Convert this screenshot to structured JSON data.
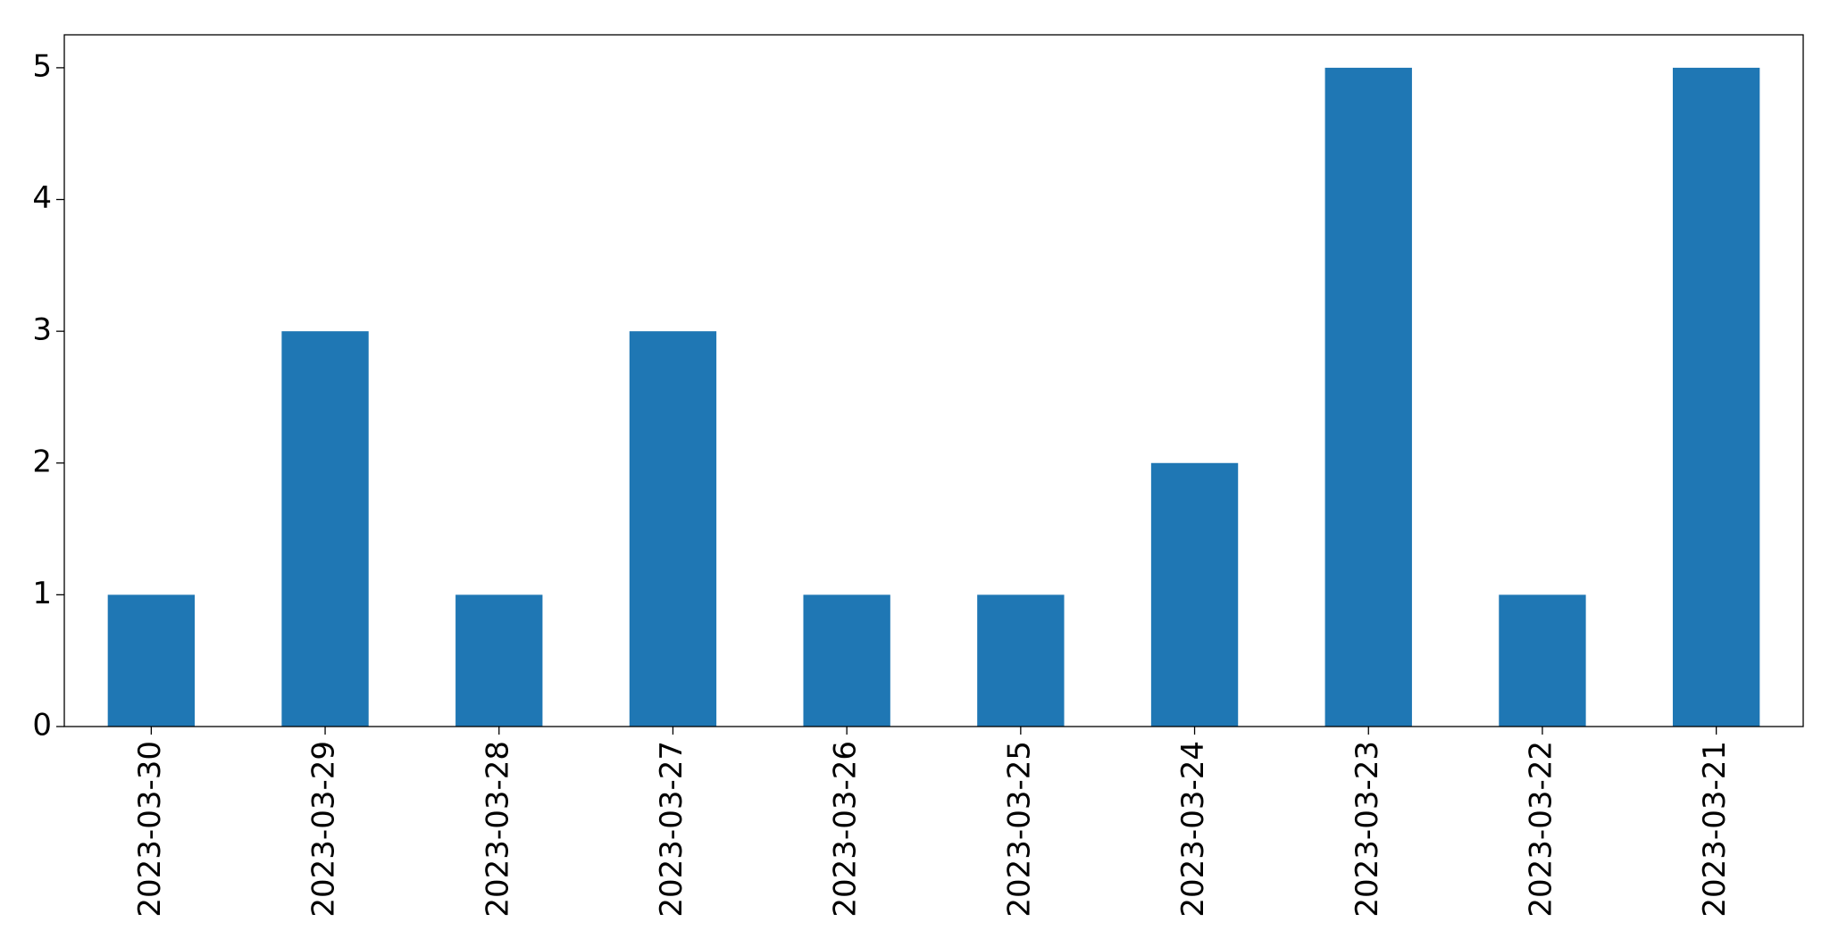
{
  "chart_data": {
    "type": "bar",
    "categories": [
      "2023-03-30",
      "2023-03-29",
      "2023-03-28",
      "2023-03-27",
      "2023-03-26",
      "2023-03-25",
      "2023-03-24",
      "2023-03-23",
      "2023-03-22",
      "2023-03-21"
    ],
    "values": [
      1,
      3,
      1,
      3,
      1,
      1,
      2,
      5,
      1,
      5
    ],
    "color": "#1f77b4",
    "ylim": [
      0,
      5.25
    ],
    "yticks": [
      0,
      1,
      2,
      3,
      4,
      5
    ],
    "grid": false
  }
}
